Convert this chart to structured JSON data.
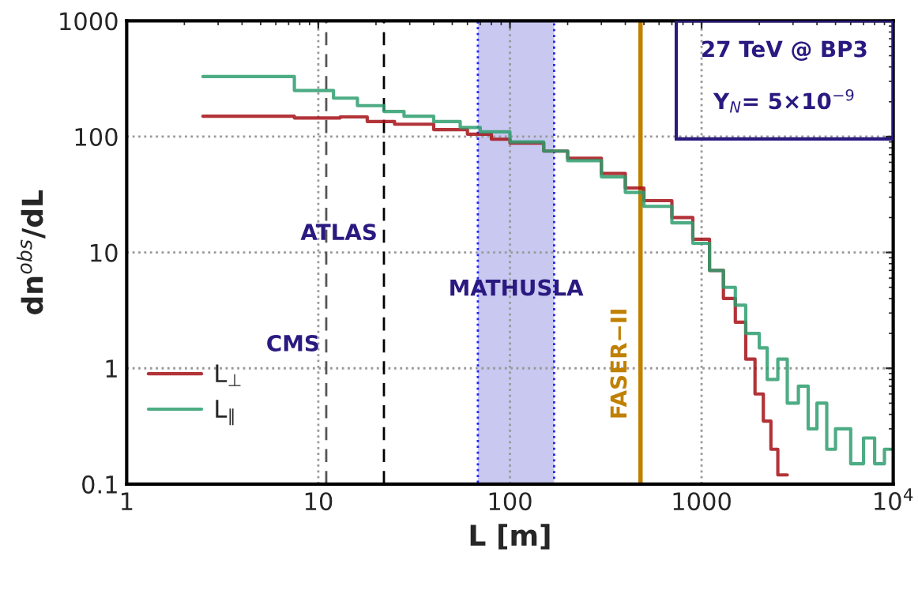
{
  "chart_data": {
    "type": "step",
    "xlabel": "L [m]",
    "ylabel": "dn$^{obs}$/dL",
    "log": "xy",
    "xlim": [
      1,
      10000
    ],
    "xticks": [
      1,
      10,
      100,
      1000,
      {
        "value": 10000,
        "label": "10$^{4}$"
      }
    ],
    "ylim": [
      0.1,
      1000
    ],
    "yticks": [
      0.1,
      1,
      10,
      100,
      1000
    ],
    "grid": true,
    "legend": "bottom left",
    "series": [
      {
        "name": "L$_{⊥}$",
        "color": "#a50f15",
        "x": [
          2.5,
          7.5,
          13,
          18,
          25,
          40,
          60,
          80,
          100,
          150,
          200,
          300,
          400,
          500,
          700,
          900,
          1100,
          1300,
          1500,
          1700,
          1900,
          2100,
          2300,
          2500,
          2800
        ],
        "values": [
          150,
          145,
          148,
          135,
          128,
          115,
          105,
          95,
          88,
          75,
          65,
          48,
          36,
          28,
          20,
          13,
          7,
          4,
          2.5,
          1.2,
          0.6,
          0.35,
          0.2,
          0.12,
          0.12
        ]
      },
      {
        "name": "L$_{∥}$",
        "color": "#2e9e6e",
        "x": [
          2.5,
          7.5,
          12,
          16,
          22,
          28,
          40,
          55,
          70,
          100,
          150,
          200,
          300,
          400,
          500,
          700,
          900,
          1100,
          1300,
          1500,
          1700,
          2000,
          2200,
          2500,
          2800,
          3200,
          3600,
          4000,
          4500,
          5000,
          6000,
          7000,
          8000,
          9000,
          10000
        ],
        "values": [
          330,
          250,
          215,
          185,
          165,
          150,
          135,
          120,
          110,
          90,
          75,
          62,
          45,
          33,
          25,
          18,
          12,
          7,
          5,
          3.5,
          2,
          1.5,
          0.8,
          1.2,
          0.5,
          0.7,
          0.3,
          0.5,
          0.2,
          0.3,
          0.15,
          0.25,
          0.15,
          0.2,
          0.2
        ]
      }
    ],
    "ref_lines": [
      {
        "axis": "x",
        "value": 11,
        "label": "CMS",
        "color": "#555555",
        "line_style": "dashed"
      },
      {
        "axis": "x",
        "value": 22,
        "label": "ATLAS",
        "color": "#000000",
        "line_style": "dashed"
      },
      {
        "axis": "x",
        "value": 480,
        "label": "FASER−II",
        "color": "#c08000",
        "line_style": "solid"
      }
    ],
    "bands": [
      {
        "axis": "x",
        "from": 68,
        "to": 170,
        "label": "MATHUSLA",
        "color": "#c8c8f0"
      }
    ],
    "annotations": [
      "27 TeV @ BP3",
      "Y$_{N}$= 5×10$^{−9}$"
    ]
  }
}
